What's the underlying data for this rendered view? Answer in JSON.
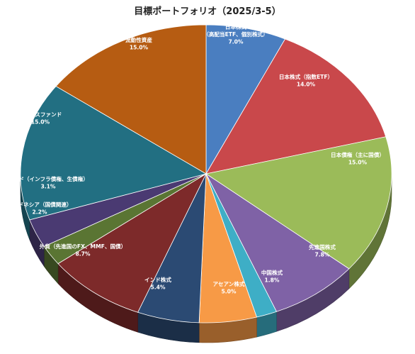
{
  "chart_data": {
    "type": "pie",
    "title": "目標ポートフォリオ（2025/3-5）",
    "slices": [
      {
        "label_lines": [
          "日本株式",
          "（高配当ETF、個別株式）"
        ],
        "value": 7.0,
        "display": "7.0%",
        "color": "#4a7ec0"
      },
      {
        "label_lines": [
          "日本株式（指数ETF）"
        ],
        "value": 14.0,
        "display": "14.0%",
        "color": "#c9484b"
      },
      {
        "label_lines": [
          "日本債権（主に国債）"
        ],
        "value": 15.0,
        "display": "15.0%",
        "color": "#9bbb59"
      },
      {
        "label_lines": [
          "先進国株式"
        ],
        "value": 7.8,
        "display": "7.8%",
        "color": "#7f62a6"
      },
      {
        "label_lines": [
          "中国株式"
        ],
        "value": 1.8,
        "display": "1.8%",
        "color": "#3eaec6"
      },
      {
        "label_lines": [
          "アセアン株式"
        ],
        "value": 5.0,
        "display": "5.0%",
        "color": "#f79a46"
      },
      {
        "label_lines": [
          "インド株式"
        ],
        "value": 5.4,
        "display": "5.4%",
        "color": "#2b4a73"
      },
      {
        "label_lines": [
          "外貨（先進国のFX、MMF、国債）"
        ],
        "value": 8.7,
        "display": "8.7%",
        "color": "#7d2a2a"
      },
      {
        "label_lines": [
          "インドネシア（国債関連）"
        ],
        "value": 2.2,
        "display": "2.2%",
        "color": "#5a7533"
      },
      {
        "label_lines": [
          "インド（インフラ債権、生債権）"
        ],
        "value": 3.1,
        "display": "3.1%",
        "color": "#4a3a72"
      },
      {
        "label_lines": [
          "バランスファンド"
        ],
        "value": 15.0,
        "display": "15.0%",
        "color": "#226f82"
      },
      {
        "label_lines": [
          "流動性資産"
        ],
        "value": 15.0,
        "display": "15.0%",
        "color": "#b65c12"
      }
    ]
  }
}
